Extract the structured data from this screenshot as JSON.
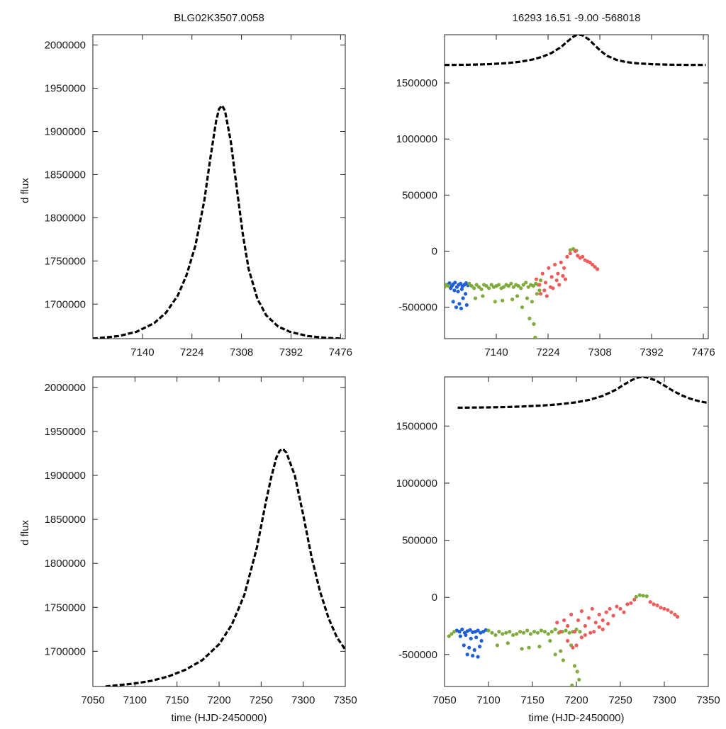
{
  "colors": {
    "model": "#000000",
    "obs_blue": "#1f5fd6",
    "obs_green": "#7eab3c",
    "obs_red": "#ee5b5b"
  },
  "chart_data": [
    {
      "id": "model-top",
      "type": "line",
      "title": "BLG02K3507.0058",
      "xlabel": "",
      "ylabel": "d flux",
      "xlim": [
        7056,
        7484
      ],
      "ylim": [
        1660000,
        2012000
      ],
      "xticks": [
        7140,
        7224,
        7308,
        7392,
        7476
      ],
      "yticks": [
        1700000,
        1750000,
        1800000,
        1850000,
        1900000,
        1950000,
        2000000
      ],
      "series": [
        {
          "name": "model",
          "style": "dashed",
          "x": [
            7056,
            7100,
            7130,
            7160,
            7180,
            7200,
            7215,
            7230,
            7245,
            7255,
            7265,
            7270,
            7275,
            7280,
            7290,
            7300,
            7310,
            7320,
            7335,
            7350,
            7370,
            7390,
            7420,
            7450,
            7480
          ],
          "y": [
            1660000,
            1663000,
            1668000,
            1678000,
            1690000,
            1710000,
            1734000,
            1768000,
            1820000,
            1868000,
            1912000,
            1926000,
            1930000,
            1924000,
            1888000,
            1834000,
            1782000,
            1741000,
            1706000,
            1687000,
            1674000,
            1668000,
            1663000,
            1661000,
            1660000
          ]
        }
      ]
    },
    {
      "id": "data-top",
      "type": "scatter",
      "title": "16293  16.51  -9.00  -568018",
      "xlabel": "",
      "ylabel": "",
      "xlim": [
        7056,
        7484
      ],
      "ylim": [
        -780000,
        1930000
      ],
      "xticks": [
        7140,
        7224,
        7308,
        7392,
        7476
      ],
      "yticks": [
        -500000,
        0,
        500000,
        1000000,
        1500000
      ],
      "series": [
        {
          "name": "model",
          "style": "dashed",
          "x": [
            7056,
            7100,
            7130,
            7160,
            7180,
            7200,
            7215,
            7230,
            7245,
            7255,
            7265,
            7270,
            7275,
            7280,
            7290,
            7300,
            7310,
            7320,
            7335,
            7350,
            7370,
            7390,
            7420,
            7450,
            7480
          ],
          "y": [
            1660000,
            1663000,
            1668000,
            1678000,
            1690000,
            1710000,
            1734000,
            1768000,
            1820000,
            1868000,
            1912000,
            1926000,
            1930000,
            1924000,
            1888000,
            1834000,
            1782000,
            1741000,
            1706000,
            1687000,
            1674000,
            1668000,
            1663000,
            1661000,
            1660000
          ]
        },
        {
          "name": "blue",
          "color_key": "obs_blue",
          "x": [
            7060,
            7064,
            7068,
            7070,
            7073,
            7076,
            7079,
            7082,
            7085,
            7088,
            7091,
            7094,
            7066,
            7072,
            7078,
            7084,
            7090,
            7070,
            7080,
            7086,
            7092,
            7075,
            7083
          ],
          "y": [
            -300000,
            -285000,
            -310000,
            -295000,
            -280000,
            -320000,
            -300000,
            -290000,
            -315000,
            -300000,
            -285000,
            -305000,
            -330000,
            -350000,
            -360000,
            -340000,
            -380000,
            -450000,
            -470000,
            -420000,
            -480000,
            -500000,
            -510000
          ]
        },
        {
          "name": "green",
          "color_key": "obs_green",
          "x": [
            7056,
            7058,
            7062,
            7096,
            7100,
            7104,
            7108,
            7112,
            7116,
            7120,
            7124,
            7128,
            7132,
            7136,
            7140,
            7144,
            7148,
            7152,
            7156,
            7160,
            7164,
            7168,
            7172,
            7176,
            7180,
            7184,
            7188,
            7192,
            7196,
            7200,
            7204,
            7208,
            7212,
            7106,
            7118,
            7138,
            7150,
            7166,
            7174,
            7182,
            7190,
            7198,
            7206,
            7210,
            7194,
            7201,
            7203,
            7260,
            7265,
            7270
          ],
          "y": [
            -320000,
            -300000,
            -310000,
            -290000,
            -310000,
            -330000,
            -300000,
            -320000,
            -340000,
            -300000,
            -310000,
            -330000,
            -300000,
            -320000,
            -310000,
            -300000,
            -330000,
            -320000,
            -300000,
            -310000,
            -290000,
            -320000,
            -300000,
            -310000,
            -330000,
            -300000,
            -280000,
            -320000,
            -300000,
            -310000,
            -290000,
            -300000,
            -260000,
            -420000,
            -400000,
            -450000,
            -440000,
            -430000,
            -400000,
            -500000,
            -420000,
            -450000,
            -380000,
            -350000,
            -600000,
            -650000,
            -770000,
            10000,
            20000,
            5000
          ]
        },
        {
          "name": "red",
          "color_key": "obs_red",
          "x": [
            7205,
            7210,
            7215,
            7220,
            7225,
            7230,
            7235,
            7240,
            7245,
            7250,
            7255,
            7260,
            7268,
            7272,
            7276,
            7280,
            7284,
            7288,
            7292,
            7296,
            7300,
            7304,
            7212,
            7222,
            7232,
            7242,
            7252,
            7218,
            7228,
            7238,
            7248
          ],
          "y": [
            -250000,
            -300000,
            -200000,
            -280000,
            -150000,
            -230000,
            -120000,
            -200000,
            -100000,
            -150000,
            -50000,
            -20000,
            0,
            -40000,
            -60000,
            -50000,
            -80000,
            -90000,
            -100000,
            -120000,
            -140000,
            -160000,
            -380000,
            -400000,
            -330000,
            -300000,
            -250000,
            -350000,
            -320000,
            -260000,
            -220000
          ]
        }
      ]
    },
    {
      "id": "model-bottom",
      "type": "line",
      "title": "",
      "xlabel": "time (HJD-2450000)",
      "ylabel": "d flux",
      "xlim": [
        7050,
        7350
      ],
      "ylim": [
        1660000,
        2012000
      ],
      "xticks": [
        7050,
        7100,
        7150,
        7200,
        7250,
        7300,
        7350
      ],
      "yticks": [
        1700000,
        1750000,
        1800000,
        1850000,
        1900000,
        1950000,
        2000000
      ],
      "series": [
        {
          "name": "model",
          "style": "dashed",
          "x": [
            7065,
            7080,
            7100,
            7120,
            7140,
            7160,
            7180,
            7200,
            7215,
            7230,
            7245,
            7255,
            7262,
            7268,
            7272,
            7276,
            7280,
            7290,
            7300,
            7310,
            7320,
            7330,
            7340,
            7350
          ],
          "y": [
            1660000,
            1661500,
            1663500,
            1666500,
            1671500,
            1679000,
            1690000,
            1708000,
            1730000,
            1764000,
            1818000,
            1867000,
            1898000,
            1920000,
            1928000,
            1930000,
            1926000,
            1900000,
            1855000,
            1807000,
            1768000,
            1738000,
            1716000,
            1702000
          ]
        }
      ]
    },
    {
      "id": "data-bottom",
      "type": "scatter",
      "title": "",
      "xlabel": "time (HJD-2450000)",
      "ylabel": "",
      "xlim": [
        7050,
        7350
      ],
      "ylim": [
        -780000,
        1930000
      ],
      "xticks": [
        7050,
        7100,
        7150,
        7200,
        7250,
        7300,
        7350
      ],
      "yticks": [
        -500000,
        0,
        500000,
        1000000,
        1500000
      ],
      "series": [
        {
          "name": "model",
          "style": "dashed",
          "x": [
            7065,
            7080,
            7100,
            7120,
            7140,
            7160,
            7180,
            7200,
            7215,
            7230,
            7245,
            7255,
            7262,
            7268,
            7272,
            7276,
            7280,
            7290,
            7300,
            7310,
            7320,
            7330,
            7340,
            7350
          ],
          "y": [
            1660000,
            1661500,
            1663500,
            1666500,
            1671500,
            1679000,
            1690000,
            1708000,
            1730000,
            1764000,
            1818000,
            1867000,
            1898000,
            1920000,
            1928000,
            1930000,
            1926000,
            1900000,
            1855000,
            1807000,
            1768000,
            1738000,
            1716000,
            1702000
          ]
        },
        {
          "name": "blue",
          "color_key": "obs_blue",
          "x": [
            7064,
            7067,
            7070,
            7073,
            7076,
            7079,
            7082,
            7085,
            7088,
            7091,
            7094,
            7097,
            7068,
            7074,
            7080,
            7086,
            7092,
            7072,
            7078,
            7084,
            7090,
            7076,
            7082,
            7088
          ],
          "y": [
            -290000,
            -300000,
            -280000,
            -310000,
            -295000,
            -285000,
            -305000,
            -300000,
            -290000,
            -310000,
            -300000,
            -285000,
            -340000,
            -330000,
            -360000,
            -350000,
            -380000,
            -420000,
            -440000,
            -460000,
            -430000,
            -500000,
            -510000,
            -520000
          ]
        },
        {
          "name": "green",
          "color_key": "obs_green",
          "x": [
            7055,
            7058,
            7061,
            7100,
            7104,
            7108,
            7112,
            7116,
            7120,
            7124,
            7128,
            7132,
            7136,
            7140,
            7144,
            7148,
            7152,
            7156,
            7160,
            7164,
            7168,
            7172,
            7176,
            7180,
            7184,
            7188,
            7192,
            7196,
            7200,
            7204,
            7110,
            7122,
            7138,
            7146,
            7158,
            7170,
            7182,
            7194,
            7206,
            7176,
            7185,
            7198,
            7201,
            7203,
            7195,
            7272,
            7276,
            7280,
            7268
          ],
          "y": [
            -340000,
            -320000,
            -300000,
            -290000,
            -310000,
            -330000,
            -300000,
            -320000,
            -310000,
            -300000,
            -330000,
            -320000,
            -300000,
            -310000,
            -290000,
            -320000,
            -300000,
            -310000,
            -290000,
            -300000,
            -320000,
            -300000,
            -280000,
            -310000,
            -300000,
            -290000,
            -310000,
            -300000,
            -280000,
            -300000,
            -420000,
            -400000,
            -450000,
            -440000,
            -430000,
            -380000,
            -470000,
            -420000,
            -350000,
            -500000,
            -550000,
            -600000,
            -650000,
            -720000,
            -770000,
            20000,
            15000,
            10000,
            5000
          ]
        },
        {
          "name": "red",
          "color_key": "obs_red",
          "x": [
            7178,
            7182,
            7186,
            7190,
            7194,
            7198,
            7202,
            7206,
            7210,
            7214,
            7218,
            7222,
            7226,
            7230,
            7234,
            7238,
            7242,
            7246,
            7250,
            7254,
            7258,
            7262,
            7266,
            7284,
            7288,
            7292,
            7296,
            7300,
            7304,
            7308,
            7312,
            7315,
            7190,
            7200,
            7210,
            7220,
            7230,
            7196,
            7206,
            7216,
            7226,
            7236
          ],
          "y": [
            -220000,
            -300000,
            -200000,
            -250000,
            -150000,
            -300000,
            -200000,
            -120000,
            -250000,
            -180000,
            -100000,
            -220000,
            -150000,
            -200000,
            -130000,
            -100000,
            -160000,
            -80000,
            -100000,
            -130000,
            -60000,
            -50000,
            -20000,
            -40000,
            -60000,
            -70000,
            -90000,
            -100000,
            -110000,
            -130000,
            -150000,
            -170000,
            -380000,
            -420000,
            -330000,
            -300000,
            -280000,
            -440000,
            -350000,
            -310000,
            -260000,
            -230000
          ]
        }
      ]
    }
  ]
}
